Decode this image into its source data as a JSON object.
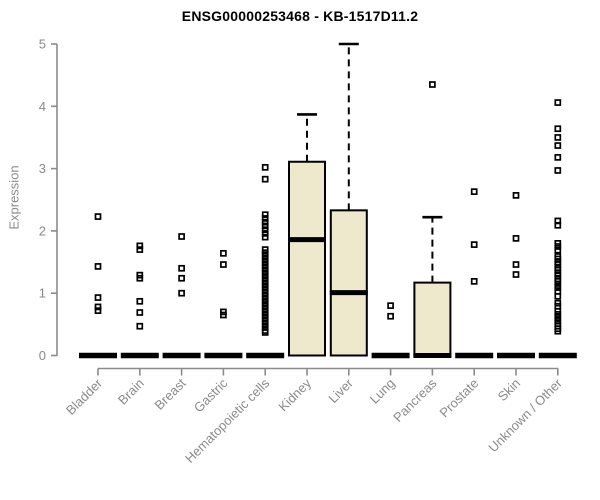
{
  "chart_data": {
    "type": "boxplot",
    "title": "ENSG00000253468 - KB-1517D11.2",
    "ylabel": "Expression",
    "xlabel": "",
    "ylim": [
      0,
      5
    ],
    "yticks": [
      0,
      1,
      2,
      3,
      4,
      5
    ],
    "grid": "off",
    "colors": {
      "box_fill": "#EEE8CD",
      "box_border": "#000000",
      "median": "#000000",
      "outlier": "#000000",
      "axis": "#8a8a8a",
      "tick_label": "#8a8a8a",
      "title": "#000000"
    },
    "categories": [
      {
        "label": "Bladder",
        "median": 0,
        "outliers": [
          2.23,
          1.43,
          0.93,
          0.78,
          0.72
        ]
      },
      {
        "label": "Brain",
        "median": 0,
        "outliers": [
          1.76,
          1.7,
          1.29,
          1.24,
          0.87,
          0.69,
          0.47
        ]
      },
      {
        "label": "Breast",
        "median": 0,
        "outliers": [
          1.91,
          1.4,
          1.24,
          1.0
        ]
      },
      {
        "label": "Gastric",
        "median": 0,
        "outliers": [
          1.64,
          1.46,
          0.7,
          0.65
        ]
      },
      {
        "label": "Hematopoietic cells",
        "median": 0,
        "outliers": [
          3.02,
          2.83,
          2.26,
          2.2,
          2.14,
          2.08,
          2.02,
          1.96,
          1.9,
          1.7,
          1.65,
          1.6,
          1.55,
          1.5,
          1.45,
          1.4,
          1.35,
          1.3,
          1.25,
          1.2,
          1.15,
          1.1,
          1.05,
          1.0,
          0.95,
          0.9,
          0.85,
          0.8,
          0.75,
          0.7,
          0.65,
          0.6,
          0.55,
          0.5,
          0.45,
          0.4,
          0.37
        ]
      },
      {
        "label": "Kidney",
        "median": 1.86,
        "box": {
          "q1": 0,
          "median": 1.86,
          "q3": 3.11,
          "whisker_high": 3.87
        },
        "outliers": []
      },
      {
        "label": "Liver",
        "median": 1.01,
        "box": {
          "q1": 0,
          "median": 1.01,
          "q3": 2.33,
          "whisker_high": 5.0
        },
        "outliers": []
      },
      {
        "label": "Lung",
        "median": 0,
        "outliers": [
          0.8,
          0.63
        ]
      },
      {
        "label": "Pancreas",
        "median": 0,
        "box": {
          "q1": 0,
          "median": 0,
          "q3": 1.17,
          "whisker_high": 2.22
        },
        "outliers": [
          4.35
        ]
      },
      {
        "label": "Prostate",
        "median": 0,
        "outliers": [
          2.63,
          1.78,
          1.19
        ]
      },
      {
        "label": "Skin",
        "median": 0,
        "outliers": [
          2.57,
          1.88,
          1.46,
          1.3
        ]
      },
      {
        "label": "Unknown / Other",
        "median": 0,
        "outliers": [
          4.06,
          3.64,
          3.5,
          3.37,
          3.18,
          2.97,
          2.16,
          2.09,
          1.8,
          1.75,
          1.69,
          1.59,
          1.55,
          1.5,
          1.46,
          1.41,
          1.37,
          1.32,
          1.28,
          1.23,
          1.19,
          1.14,
          1.09,
          1.03,
          0.95,
          0.84,
          0.79,
          0.71,
          0.66,
          0.61,
          0.56,
          0.51,
          0.47,
          0.43,
          0.39
        ]
      }
    ]
  }
}
